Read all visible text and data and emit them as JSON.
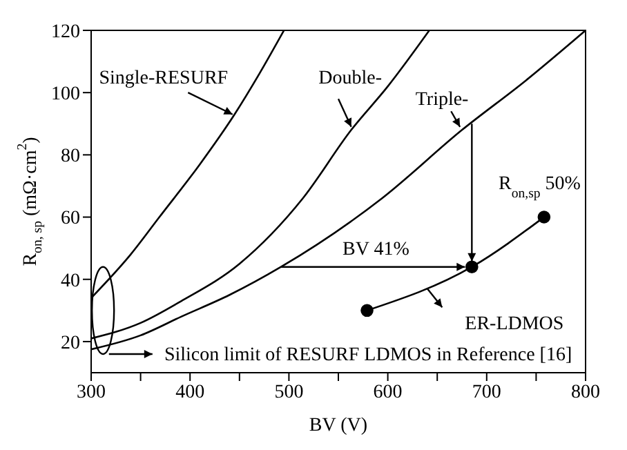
{
  "chart_data": {
    "type": "line",
    "xlabel": "BV (V)",
    "ylabel": "R$_{on, sp}$ (mΩ·cm$^{2}$)",
    "xlim": [
      300,
      800
    ],
    "ylim": [
      10,
      120
    ],
    "xticks": [
      300,
      {
        "value": 350,
        "label": null
      },
      400,
      {
        "value": 450,
        "label": null
      },
      500,
      {
        "value": 550,
        "label": null
      },
      600,
      {
        "value": 650,
        "label": null
      },
      700,
      {
        "value": 750,
        "label": null
      },
      800
    ],
    "yticks": [
      20,
      40,
      60,
      80,
      100,
      120
    ],
    "series": [
      {
        "name": "Single-RESURF",
        "color": "#000000",
        "marker": "none",
        "x": [
          300,
          340,
          369,
          410,
          445,
          470,
          495
        ],
        "values": [
          34,
          48,
          60,
          77,
          93,
          106,
          120
        ]
      },
      {
        "name": "Double-",
        "color": "#000000",
        "marker": "none",
        "x": [
          300,
          350,
          391,
          450,
          514,
          563,
          600,
          642
        ],
        "values": [
          21,
          26,
          33,
          45,
          66,
          88,
          102,
          120
        ]
      },
      {
        "name": "Triple-",
        "color": "#000000",
        "marker": "none",
        "x": [
          300,
          350,
          391,
          440,
          492,
          594,
          675,
          740,
          800
        ],
        "values": [
          17.5,
          22,
          28,
          35,
          44,
          66,
          88,
          104,
          120
        ]
      },
      {
        "name": "ER-LDMOS",
        "color": "#000000",
        "marker": "circle",
        "x": [
          579,
          685,
          758
        ],
        "values": [
          30,
          44,
          60
        ]
      }
    ],
    "annotations": [
      "R$_{on,sp}$ 50%",
      "BV 41%",
      "Silicon limit of RESURF LDMOS in Reference [16]"
    ]
  }
}
